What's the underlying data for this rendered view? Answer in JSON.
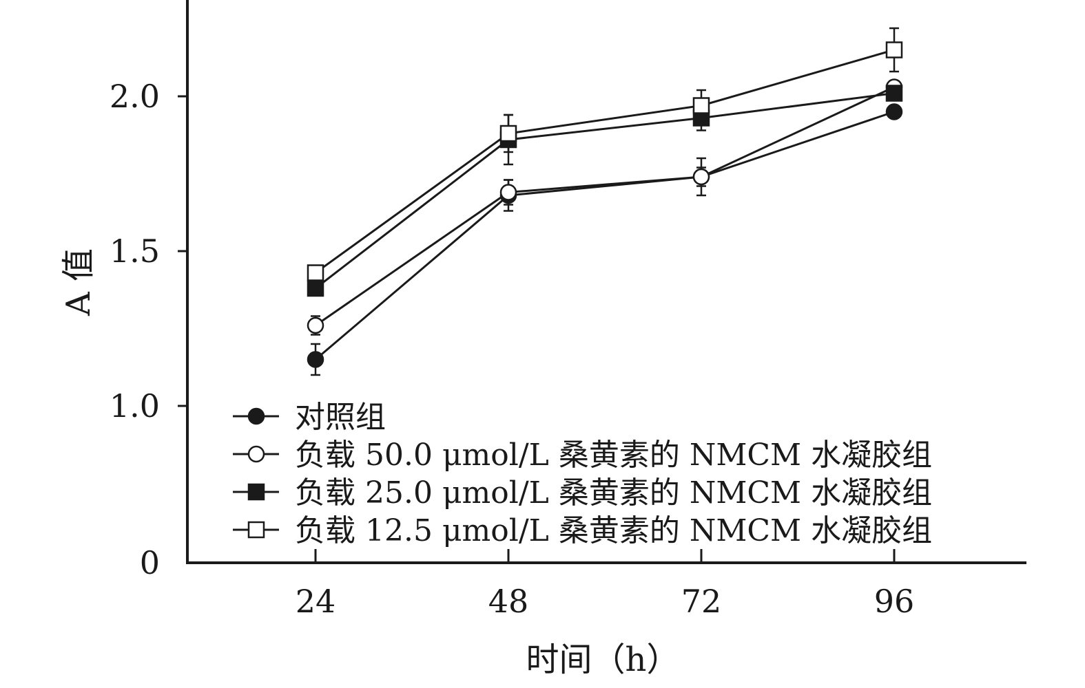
{
  "chart_data": {
    "type": "line",
    "xlabel": "时间（h）",
    "ylabel": "A 值",
    "x": [
      24,
      48,
      72,
      96
    ],
    "x_tick_labels": [
      "24",
      "48",
      "72",
      "96"
    ],
    "y_tick_labels": [
      "0",
      "1.0",
      "1.5",
      "2.0"
    ],
    "ylim": [
      0,
      2.3
    ],
    "y_axis_break": "0 to 1.0 compressed",
    "grid": false,
    "legend_position": "bottom-left inside plot",
    "error_bars": true,
    "series": [
      {
        "name": "对照组",
        "marker": "filled-circle",
        "values": [
          1.15,
          1.68,
          1.74,
          1.95
        ],
        "errors": [
          0.05,
          0.05,
          0.06,
          0.01
        ]
      },
      {
        "name": "负载 50.0 μmol/L 桑黄素的 NMCM 水凝胶组",
        "marker": "open-circle",
        "values": [
          1.26,
          1.69,
          1.74,
          2.03
        ],
        "errors": [
          0.03,
          0.04,
          0.03,
          0.01
        ]
      },
      {
        "name": "负载 25.0 μmol/L 桑黄素的 NMCM 水凝胶组",
        "marker": "filled-square",
        "values": [
          1.38,
          1.86,
          1.93,
          2.01
        ],
        "errors": [
          0.02,
          0.08,
          0.04,
          0.02
        ]
      },
      {
        "name": "负载 12.5 μmol/L 桑黄素的 NMCM 水凝胶组",
        "marker": "open-square",
        "values": [
          1.43,
          1.88,
          1.97,
          2.15
        ],
        "errors": [
          0.02,
          0.06,
          0.05,
          0.07
        ]
      }
    ]
  }
}
